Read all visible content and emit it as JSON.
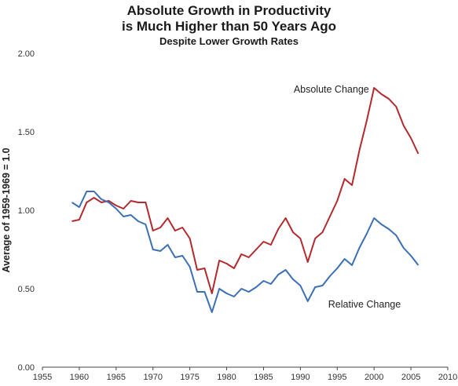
{
  "chart_data": {
    "type": "line",
    "title": "Absolute Growth in Productivity",
    "title_line2": "is Much Higher than 50 Years Ago",
    "subtitle": "Despite Lower Growth Rates",
    "xlabel": "",
    "ylabel": "Average of 1959-1969 = 1.0",
    "xlim": [
      1955,
      2010
    ],
    "ylim": [
      0,
      2
    ],
    "x_ticks": [
      1955,
      1960,
      1965,
      1970,
      1975,
      1980,
      1985,
      1990,
      1995,
      2000,
      2005,
      2010
    ],
    "y_ticks": [
      "0.00",
      "0.50",
      "1.00",
      "1.50",
      "2.00"
    ],
    "grid": false,
    "legend": "none",
    "x": [
      1959,
      1960,
      1961,
      1962,
      1963,
      1964,
      1965,
      1966,
      1967,
      1968,
      1969,
      1970,
      1971,
      1972,
      1973,
      1974,
      1975,
      1976,
      1977,
      1978,
      1979,
      1980,
      1981,
      1982,
      1983,
      1984,
      1985,
      1986,
      1987,
      1988,
      1989,
      1990,
      1991,
      1992,
      1993,
      1994,
      1995,
      1996,
      1997,
      1998,
      1999,
      2000,
      2001,
      2002,
      2003,
      2004,
      2005,
      2006
    ],
    "series": [
      {
        "name": "Absolute Change",
        "color": "#b22a2e",
        "values": [
          0.93,
          0.94,
          1.05,
          1.08,
          1.05,
          1.06,
          1.03,
          1.01,
          1.06,
          1.05,
          1.05,
          0.87,
          0.89,
          0.95,
          0.87,
          0.89,
          0.82,
          0.62,
          0.63,
          0.47,
          0.68,
          0.66,
          0.63,
          0.72,
          0.7,
          0.75,
          0.8,
          0.78,
          0.88,
          0.95,
          0.86,
          0.82,
          0.67,
          0.82,
          0.86,
          0.96,
          1.06,
          1.2,
          1.16,
          1.38,
          1.57,
          1.78,
          1.74,
          1.71,
          1.66,
          1.54,
          1.46,
          1.36
        ]
      },
      {
        "name": "Relative Change",
        "color": "#3a6fb5",
        "values": [
          1.05,
          1.02,
          1.12,
          1.12,
          1.07,
          1.05,
          1.01,
          0.96,
          0.97,
          0.93,
          0.91,
          0.75,
          0.74,
          0.78,
          0.7,
          0.71,
          0.64,
          0.48,
          0.48,
          0.35,
          0.5,
          0.47,
          0.45,
          0.5,
          0.48,
          0.51,
          0.55,
          0.53,
          0.59,
          0.62,
          0.56,
          0.52,
          0.42,
          0.51,
          0.52,
          0.58,
          0.63,
          0.69,
          0.65,
          0.76,
          0.85,
          0.95,
          0.91,
          0.88,
          0.84,
          0.76,
          0.71,
          0.65
        ]
      }
    ],
    "annotations": [
      {
        "text": "Absolute Change",
        "x": 1994.2,
        "y": 1.75
      },
      {
        "text": "Relative Change",
        "x": 1998.7,
        "y": 0.38
      }
    ]
  }
}
